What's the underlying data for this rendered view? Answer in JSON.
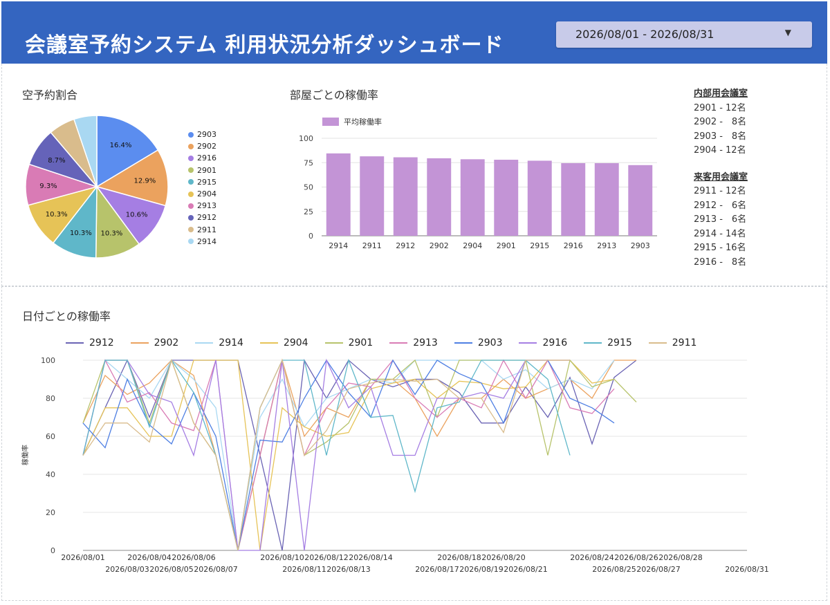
{
  "header": {
    "title": "会議室予約システム 利用状況分析ダッシュボード",
    "date_range": "2026/08/01 - 2026/08/31",
    "caret": "▼"
  },
  "pie_section": {
    "title": "空予約割合"
  },
  "bar_section": {
    "title": "部屋ごとの稼働率"
  },
  "line_section": {
    "title": "日付ごとの稼働率"
  },
  "room_info": {
    "internal": {
      "heading": "内部用会議室",
      "rooms": [
        "2901 - 12名",
        "2902 -　8名",
        "2903 -　8名",
        "2904 - 12名"
      ]
    },
    "guest": {
      "heading": "来客用会議室",
      "rooms": [
        "2911 - 12名",
        "2912 -　6名",
        "2913 -　6名",
        "2914 - 14名",
        "2915 - 16名",
        "2916 -　8名"
      ]
    }
  },
  "chart_data": [
    {
      "type": "pie",
      "title": "空予約割合",
      "labels": [
        "2903",
        "2902",
        "2916",
        "2901",
        "2915",
        "2904",
        "2913",
        "2912",
        "2911",
        "2914"
      ],
      "values": [
        16.4,
        12.9,
        10.6,
        10.3,
        10.3,
        10.3,
        9.3,
        8.7,
        6.0,
        5.2
      ],
      "data_labels": [
        "16.4%",
        "12.9%",
        "10.6%",
        "10.3%",
        "10.3%",
        "10.3%",
        "9.3%",
        "8.7%",
        "",
        ""
      ],
      "colors": [
        "#5b8def",
        "#eba25e",
        "#a57ee3",
        "#b7c36b",
        "#5fb7c9",
        "#e6c357",
        "#d97bb5",
        "#6563b9",
        "#d9bc8c",
        "#a9d8f2"
      ],
      "legend_position": "right"
    },
    {
      "type": "bar",
      "title": "部屋ごとの稼働率",
      "categories": [
        "2914",
        "2911",
        "2912",
        "2902",
        "2904",
        "2901",
        "2915",
        "2916",
        "2913",
        "2903"
      ],
      "series": [
        {
          "name": "平均稼働率",
          "values": [
            84.5,
            81.5,
            80.5,
            79.5,
            78.5,
            78,
            77,
            74.5,
            74.5,
            72.5
          ]
        }
      ],
      "ylim": [
        0,
        100
      ],
      "yticks": [
        0,
        25,
        50,
        75,
        100
      ],
      "color": "#c394d6",
      "grid": true,
      "legend_position": "top-left"
    },
    {
      "type": "line",
      "title": "日付ごとの稼働率",
      "ylabel": "稼働率",
      "ylim": [
        0,
        100
      ],
      "yticks": [
        0,
        20,
        40,
        60,
        80,
        100
      ],
      "grid": true,
      "legend_position": "top",
      "x": [
        "2026/08/01",
        "2026/08/02",
        "2026/08/03",
        "2026/08/04",
        "2026/08/05",
        "2026/08/06",
        "2026/08/07",
        "2026/08/08",
        "2026/08/09",
        "2026/08/10",
        "2026/08/11",
        "2026/08/12",
        "2026/08/13",
        "2026/08/14",
        "2026/08/15",
        "2026/08/16",
        "2026/08/17",
        "2026/08/18",
        "2026/08/19",
        "2026/08/20",
        "2026/08/21",
        "2026/08/22",
        "2026/08/23",
        "2026/08/24",
        "2026/08/25",
        "2026/08/26",
        "2026/08/27",
        "2026/08/28",
        "2026/08/29",
        "2026/08/30",
        "2026/08/31"
      ],
      "xticks_upper": [
        "2026/08/01",
        "2026/08/04",
        "2026/08/06",
        "2026/08/10",
        "2026/08/12",
        "2026/08/14",
        "2026/08/18",
        "2026/08/20",
        "2026/08/24",
        "2026/08/26",
        "2026/08/28"
      ],
      "xticks_lower": [
        "2026/08/03",
        "2026/08/05",
        "2026/08/07",
        "2026/08/11",
        "2026/08/13",
        "2026/08/17",
        "2026/08/19",
        "2026/08/21",
        "2026/08/25",
        "2026/08/27",
        "2026/08/31"
      ],
      "series": [
        {
          "name": "2912",
          "color": "#6a63b4",
          "values": [
            50,
            75,
            100,
            70,
            100,
            100,
            100,
            100,
            50,
            0,
            100,
            80,
            100,
            90,
            86,
            90,
            90,
            83,
            67,
            67,
            86,
            70,
            91,
            56,
            91,
            100,
            null,
            null,
            null,
            null,
            null
          ]
        },
        {
          "name": "2902",
          "color": "#eba25e",
          "values": [
            67,
            92,
            82,
            88,
            100,
            92,
            50,
            0,
            50,
            100,
            60,
            75,
            70,
            90,
            90,
            80,
            60,
            80,
            80,
            90,
            80,
            85,
            90,
            80,
            100,
            100,
            null,
            null,
            null,
            null,
            null
          ]
        },
        {
          "name": "2914",
          "color": "#a9d8f2",
          "values": [
            50,
            100,
            90,
            80,
            100,
            90,
            75,
            0,
            70,
            90,
            65,
            80,
            85,
            90,
            88,
            100,
            100,
            100,
            100,
            90,
            95,
            85,
            90,
            85,
            100,
            null,
            null,
            null,
            null,
            null,
            null
          ]
        },
        {
          "name": "2904",
          "color": "#e6c357",
          "values": [
            50,
            75,
            75,
            60,
            60,
            100,
            100,
            100,
            0,
            75,
            65,
            60,
            62,
            85,
            88,
            90,
            80,
            89,
            88,
            85,
            86,
            100,
            100,
            88,
            90,
            null,
            null,
            null,
            null,
            null,
            null
          ]
        },
        {
          "name": "2901",
          "color": "#b7c36b",
          "values": [
            67,
            100,
            100,
            67,
            100,
            67,
            50,
            0,
            50,
            100,
            50,
            57,
            67,
            90,
            90,
            100,
            70,
            100,
            100,
            100,
            100,
            50,
            100,
            86,
            90,
            78,
            null,
            null,
            null,
            null,
            null
          ]
        },
        {
          "name": "2913",
          "color": "#d97bb5",
          "values": [
            50,
            100,
            78,
            83,
            67,
            63,
            100,
            0,
            50,
            100,
            50,
            75,
            88,
            86,
            100,
            80,
            70,
            80,
            75,
            100,
            80,
            100,
            75,
            72,
            85,
            null,
            null,
            null,
            null,
            null,
            null
          ]
        },
        {
          "name": "2903",
          "color": "#4e7fe3",
          "values": [
            67,
            54,
            90,
            66,
            56,
            83,
            60,
            0,
            58,
            57,
            80,
            100,
            83,
            70,
            100,
            82,
            100,
            93,
            88,
            67,
            100,
            100,
            80,
            75,
            67,
            null,
            null,
            null,
            null,
            null,
            null
          ]
        },
        {
          "name": "2916",
          "color": "#a57ee3",
          "values": [
            50,
            100,
            100,
            82,
            78,
            50,
            100,
            0,
            0,
            100,
            0,
            100,
            75,
            86,
            50,
            50,
            80,
            80,
            83,
            80,
            100,
            100,
            100,
            null,
            null,
            null,
            null,
            null,
            null,
            null,
            null
          ]
        },
        {
          "name": "2915",
          "color": "#5fb7c9",
          "values": [
            50,
            100,
            100,
            65,
            100,
            83,
            50,
            0,
            75,
            100,
            100,
            50,
            100,
            70,
            71,
            31,
            75,
            78,
            100,
            100,
            100,
            90,
            50,
            null,
            null,
            null,
            null,
            null,
            null,
            null,
            null
          ]
        },
        {
          "name": "2911",
          "color": "#d9bc8c",
          "values": [
            50,
            67,
            67,
            57,
            100,
            67,
            50,
            0,
            75,
            100,
            50,
            63,
            85,
            88,
            90,
            89,
            90,
            80,
            80,
            62,
            100,
            100,
            100,
            null,
            null,
            null,
            null,
            null,
            null,
            null,
            null
          ]
        }
      ]
    }
  ]
}
